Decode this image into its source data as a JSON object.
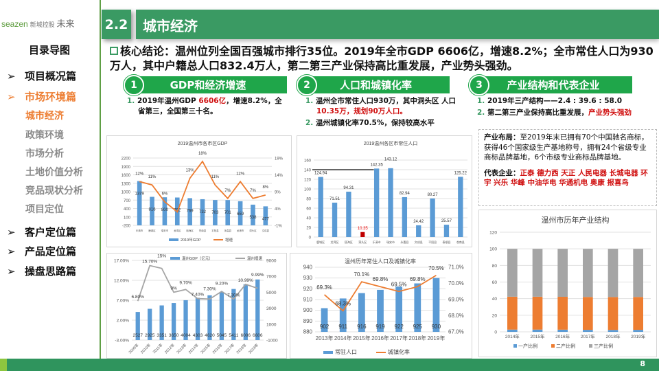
{
  "logo": {
    "brand": "seazen",
    "brand_cn": "新城控股",
    "partner": "未来"
  },
  "header": {
    "section_number": "2.2",
    "title": "城市经济"
  },
  "toc": {
    "title": "目录导图",
    "items": [
      {
        "label": "项目概况篇",
        "level": 1,
        "state": "normal"
      },
      {
        "label": "市场环境篇",
        "level": 1,
        "state": "active"
      },
      {
        "label": "城市经济",
        "level": 2,
        "state": "active"
      },
      {
        "label": "政策环境",
        "level": 2,
        "state": "muted"
      },
      {
        "label": "市场分析",
        "level": 2,
        "state": "muted"
      },
      {
        "label": "土地价值分析",
        "level": 2,
        "state": "muted"
      },
      {
        "label": "竞品现状分析",
        "level": 2,
        "state": "muted"
      },
      {
        "label": "项目定位",
        "level": 2,
        "state": "muted"
      },
      {
        "label": "客户定位篇",
        "level": 1,
        "state": "normal"
      },
      {
        "label": "产品定位篇",
        "level": 1,
        "state": "normal"
      },
      {
        "label": "操盘思路篇",
        "level": 1,
        "state": "normal"
      }
    ]
  },
  "conclusion": "核心结论：温州位列全国百强城市排行35位。2019年全市GDP 6606亿，增速8.2%；全市常住人口为930万人，其中户籍总人口832.4万人，第二第三产业保持高比重发展，产业势头强劲。",
  "sections": [
    {
      "num": "1",
      "title": "GDP和经济增速",
      "bullets": [
        {
          "n": "1.",
          "parts": [
            {
              "t": "2019年温州GDP "
            },
            {
              "t": "6606亿",
              "red": true
            },
            {
              "t": "，增速8.2%，全省第三，全国第三十名。"
            }
          ]
        }
      ]
    },
    {
      "num": "2",
      "title": "人口和城镇化率",
      "bullets": [
        {
          "n": "1.",
          "parts": [
            {
              "t": "温州全市常住人口930万，其中洞头区 人口"
            },
            {
              "t": "10.35万，规划90万人口。",
              "red": true
            }
          ]
        },
        {
          "n": "2.",
          "parts": [
            {
              "t": "温州城镇化率70.5%，保持较高水平"
            }
          ]
        }
      ]
    },
    {
      "num": "3",
      "title": "产业结构和代表企业",
      "bullets": [
        {
          "n": "1.",
          "parts": [
            {
              "t": "2019年三产结构——2.4 : 39.6 : 58.0"
            }
          ]
        },
        {
          "n": "2.",
          "parts": [
            {
              "t": "第二第三产业保持高比重发展，"
            },
            {
              "t": "产业势头强劲",
              "red": true
            }
          ]
        }
      ]
    }
  ],
  "info": {
    "layout_label": "产业布局：",
    "layout_text": "至2019年末已拥有70个中国驰名商标，获得46个国家级生产基地称号，拥有24个省级专业商标品牌基地，6个市级专业商标品牌基地。",
    "ent_label": "代表企业：",
    "ent_text": "正泰 德力西 天正 人民电器 长城电器 环宇  兴乐 华峰 中油华电 华通机电 奥康 报喜鸟"
  },
  "page_number": "8",
  "colors": {
    "green": "#3a9a63",
    "bar": "#5b9bd5",
    "orange": "#ed7d31",
    "gray": "#a5a5a5",
    "red": "#c00000"
  },
  "chart_data": [
    {
      "type": "bar+line",
      "title": "2019温州市各市区GDP",
      "categories": [
        "乐清市",
        "鹿城区",
        "瑞安市",
        "龙湾区",
        "瓯海区",
        "苍南县",
        "平阳县",
        "永嘉县",
        "龙港市",
        "洞头区",
        "文成县"
      ],
      "series": [
        {
          "name": "2019年GDP",
          "type": "bar",
          "values": [
            1379,
            816,
            800,
            792,
            769,
            732,
            703,
            701,
            659,
            538,
            477
          ],
          "labels": [
            "1379",
            "816",
            "800",
            "792",
            "769",
            "732",
            "703",
            "701",
            "659",
            "538",
            "477"
          ]
        },
        {
          "name": "增速",
          "type": "line",
          "axis": "right",
          "values": [
            12,
            11,
            6,
            3,
            13,
            18,
            11,
            7,
            12,
            7,
            8
          ],
          "labels": [
            "12%",
            "11%",
            "6%",
            "",
            "13%",
            "18%",
            "11%",
            "7%",
            "12%",
            "7%",
            "8%"
          ]
        }
      ],
      "ylim": [
        -200,
        2200
      ],
      "yticks": [
        "2200",
        "1900",
        "1600",
        "1300",
        "1000",
        "700",
        "400",
        "100",
        "-200"
      ],
      "y2lim": [
        -1,
        19
      ],
      "y2ticks": [
        "19%",
        "14%",
        "9%",
        "4%",
        "-1%"
      ],
      "legend": "bottom"
    },
    {
      "type": "bar",
      "title": "2019温州各区市常住人口",
      "categories": [
        "鹿城区",
        "龙湾区",
        "瓯海区",
        "洞头区",
        "乐清市",
        "瑞安市",
        "永嘉县",
        "文成县",
        "平阳县",
        "泰顺县",
        "苍南县"
      ],
      "values": [
        124.94,
        71.51,
        94.31,
        10.35,
        142.35,
        143.12,
        82.94,
        24.42,
        80.27,
        25.57,
        125.22
      ],
      "labels": [
        "124.94",
        "71.51",
        "94.31",
        "10.35",
        "142.35",
        "143.12",
        "82.94",
        "24.42",
        "80.27",
        "25.57",
        "125.22"
      ],
      "highlight_index": 3,
      "ylim": [
        0,
        160
      ],
      "yticks": [
        "160",
        "140",
        "120",
        "100",
        "80",
        "60",
        "40",
        "20",
        "0"
      ],
      "reference_line": 140
    },
    {
      "type": "bar+line",
      "categories": [
        "2009年",
        "2010年",
        "2011年",
        "2012年",
        "2013年",
        "2014年",
        "2015年",
        "2016年",
        "2017年",
        "2018年",
        "2019年"
      ],
      "series": [
        {
          "name": "温州GDP（亿元）",
          "type": "bar",
          "axis": "right",
          "values": [
            2527,
            2925,
            3351,
            3650,
            4004,
            4303,
            4620,
            5045,
            5411,
            6006,
            6606
          ],
          "labels": [
            "2527",
            "2925",
            "3351",
            "3650",
            "4004",
            "4303",
            "4620",
            "5045",
            "5411",
            "6006",
            "6606"
          ]
        },
        {
          "name": "温州增速",
          "type": "line",
          "values": [
            6.8,
            15.7,
            15,
            9,
            9.7,
            7.4,
            7.3,
            9.2,
            7.3,
            10.99,
            9.99
          ],
          "labels": [
            "6.80%",
            "15.70%",
            "15%",
            "9%",
            "9.70%",
            "7.40%",
            "7.30%",
            "9.20%",
            "7.30%",
            "10.99%",
            "9.99%"
          ]
        }
      ],
      "ylim": [
        -3,
        17
      ],
      "yticks": [
        "17.00%",
        "12.00%",
        "7.00%",
        "2.00%",
        "-3.00%"
      ],
      "y2lim": [
        -1000,
        9000
      ],
      "y2ticks": [
        "9000",
        "7000",
        "5000",
        "3000",
        "1000",
        "-1000"
      ],
      "legend": "top"
    },
    {
      "type": "bar+line",
      "title": "温州历年常住人口及城镇化率",
      "categories": [
        "2013年",
        "2014年",
        "2015年",
        "2016年",
        "2017年",
        "2018年",
        "2019年"
      ],
      "series": [
        {
          "name": "常驻人口",
          "type": "bar",
          "values": [
            902,
            911,
            916,
            919,
            922,
            925,
            930
          ],
          "labels": [
            "902",
            "911",
            "916",
            "919",
            "922",
            "925",
            "930"
          ]
        },
        {
          "name": "城镇化率",
          "type": "line",
          "axis": "right",
          "values": [
            69.3,
            68.3,
            70.1,
            69.8,
            69.5,
            69.8,
            70.5
          ],
          "labels": [
            "69.3%",
            "68.3%",
            "70.1%",
            "69.8%",
            "69.5%",
            "69.8%",
            "70.5%"
          ]
        }
      ],
      "ylim": [
        880,
        940
      ],
      "yticks": [
        "940",
        "930",
        "920",
        "910",
        "900",
        "890",
        "880"
      ],
      "y2lim": [
        67,
        71
      ],
      "y2ticks": [
        "71.0%",
        "70.0%",
        "69.0%",
        "68.0%",
        "67.0%"
      ],
      "legend": "bottom"
    },
    {
      "type": "stacked-bar",
      "title": "温州市历年产业结构",
      "categories": [
        "2014年",
        "2015年",
        "2016年",
        "2017年",
        "2018年",
        "2019年"
      ],
      "series": [
        {
          "name": "一产比例",
          "values": [
            2.7,
            2.7,
            2.6,
            2.4,
            2.3,
            2.4
          ]
        },
        {
          "name": "二产比例",
          "values": [
            39.6,
            39.6,
            39.6,
            39.6,
            39.6,
            39.6
          ]
        },
        {
          "name": "三产比例",
          "values": [
            57.7,
            57.7,
            57.8,
            58.0,
            58.1,
            58.0
          ]
        }
      ],
      "ylim": [
        0,
        120
      ],
      "yticks": [
        "120",
        "100",
        "80",
        "60",
        "40",
        "20",
        "0"
      ],
      "legend": "bottom"
    }
  ]
}
